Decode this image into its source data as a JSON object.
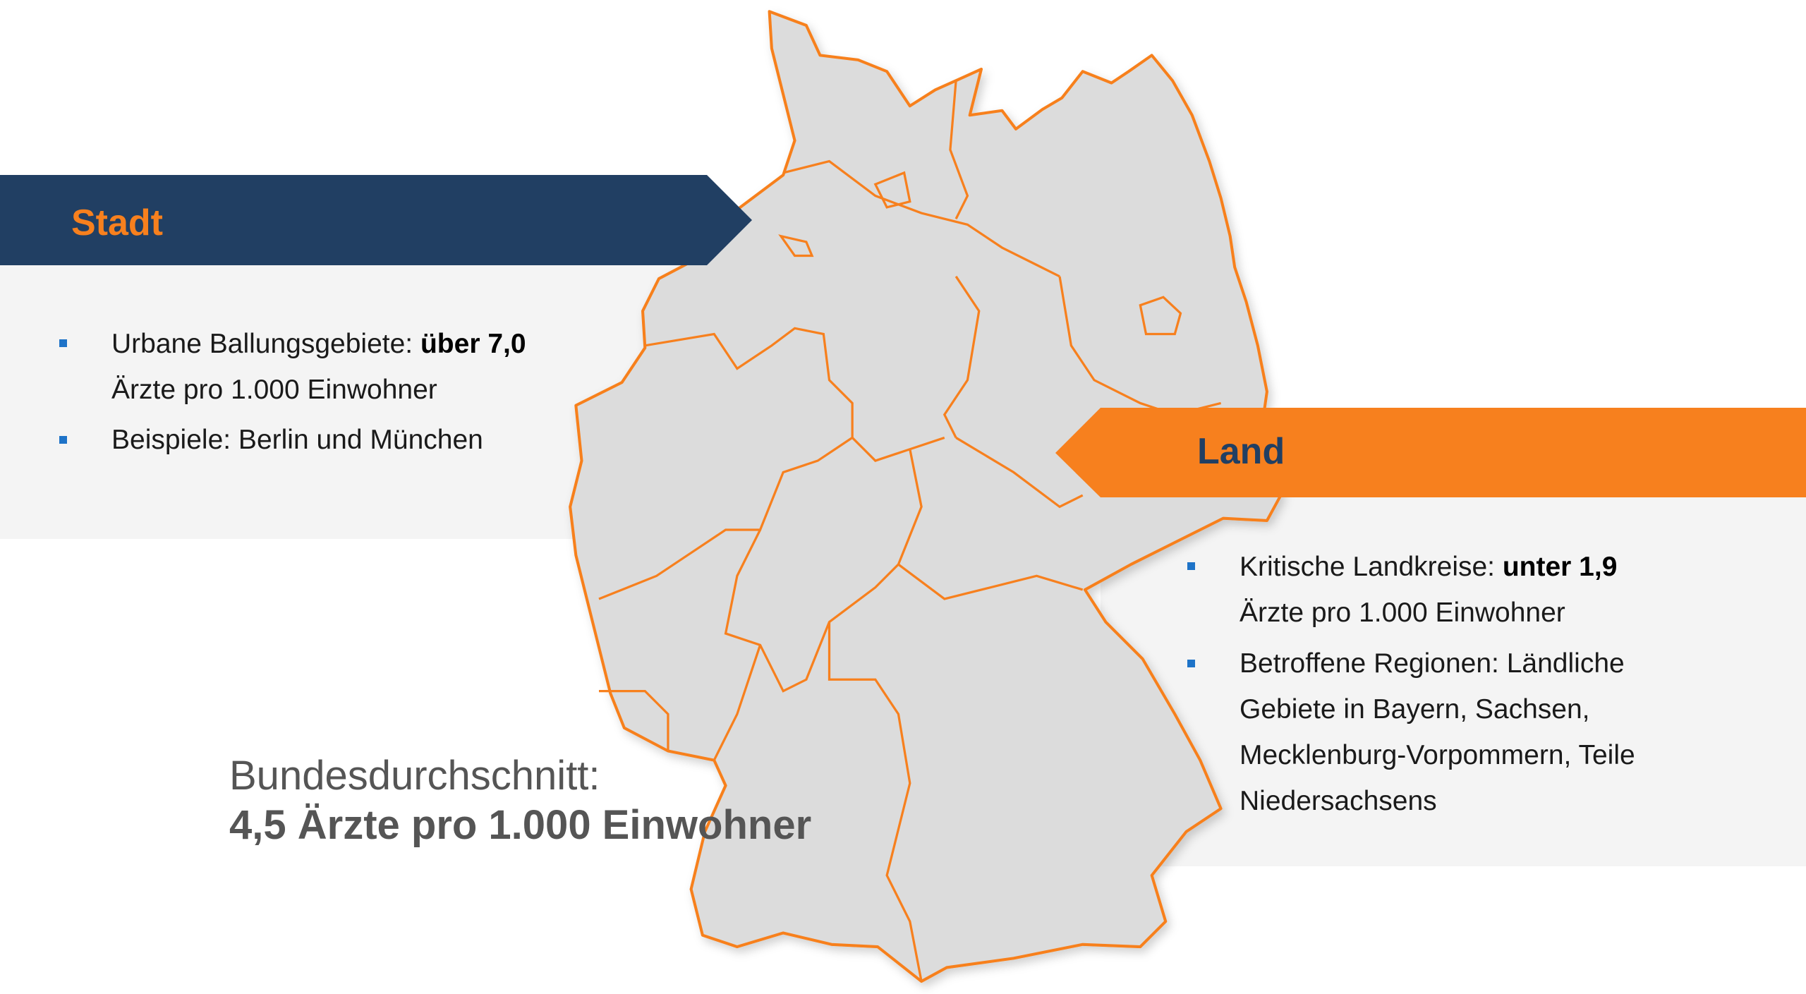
{
  "colors": {
    "navy": "#213f63",
    "orange": "#f7801e",
    "map_fill": "#dcdcdc",
    "bullet": "#1e73c8",
    "panel": "#f4f4f4"
  },
  "stadt": {
    "title": "Stadt",
    "bullets": [
      {
        "text": "Urbane Ballungsgebiete: ",
        "bold": "über 7,0",
        "line2": "Ärzte pro 1.000 Einwohner"
      },
      {
        "text": "Beispiele: Berlin und München"
      }
    ]
  },
  "land": {
    "title": "Land",
    "bullets": [
      {
        "text": "Kritische Landkreise: ",
        "bold": "unter 1,9",
        "line2": "Ärzte pro 1.000 Einwohner"
      },
      {
        "lines": [
          "Betroffene Regionen: Ländliche",
          "Gebiete in Bayern, Sachsen,",
          "Mecklenburg-Vorpommern, Teile",
          "Niedersachsens"
        ]
      }
    ]
  },
  "average": {
    "label": "Bundesdurchschnitt:",
    "value": "4,5 Ärzte pro 1.000 Einwohner"
  }
}
